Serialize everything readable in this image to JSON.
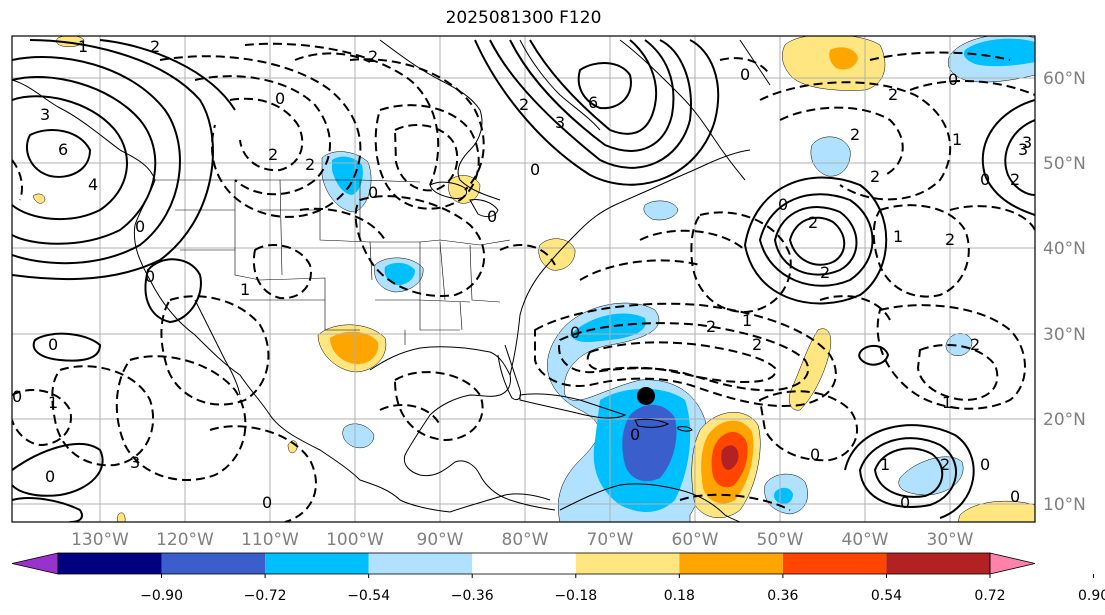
{
  "title": "2025081300 F120",
  "lon_labels": [
    "130°W",
    "120°W",
    "110°W",
    "100°W",
    "90°W",
    "80°W",
    "70°W",
    "60°W",
    "50°W",
    "40°W",
    "30°W"
  ],
  "lat_labels": [
    "60°N",
    "50°N",
    "40°N",
    "30°N",
    "20°N",
    "10°N"
  ],
  "colorbar": {
    "tick_labels": [
      "−0.90",
      "−0.72",
      "−0.54",
      "−0.36",
      "−0.18",
      "0.18",
      "0.36",
      "0.54",
      "0.72",
      "0.90"
    ],
    "colors": [
      "#9932cc",
      "#000080",
      "#3a5fcd",
      "#00bfff",
      "#b0e2ff",
      "#ffffff",
      "#ffe680",
      "#ffa500",
      "#ff4500",
      "#b22222",
      "#ff82ab"
    ]
  },
  "contour_labels": [
    "6",
    "4",
    "3",
    "2",
    "0",
    "2",
    "0",
    "0",
    "0",
    "6",
    "3",
    "0",
    "2",
    "2",
    "2",
    "0",
    "0",
    "2",
    "1",
    "2",
    "2",
    "1",
    "2",
    "2",
    "0",
    "2",
    "2",
    "3",
    "0",
    "0",
    "1",
    "2",
    "0",
    "3",
    "2",
    "1",
    "1",
    "0",
    "0",
    "0",
    "0",
    "0",
    "0",
    "2",
    "1",
    "1",
    "0",
    "0",
    "1",
    "2",
    "3",
    "0"
  ],
  "marker": "storm-center"
}
